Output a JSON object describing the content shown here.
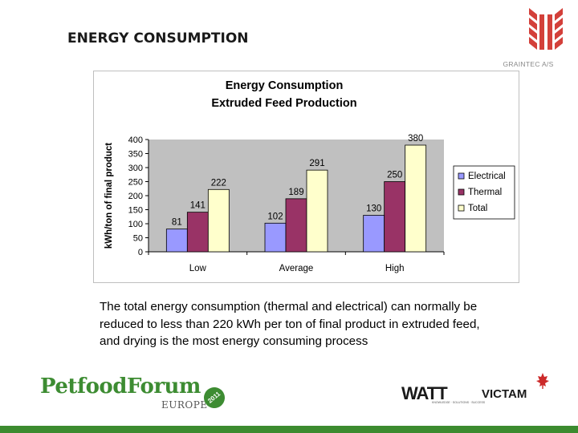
{
  "slide": {
    "title": "ENERGY CONSUMPTION",
    "body_text": "The total energy consumption (thermal and electrical) can normally be reduced to less than 220 kWh per ton of final product in extruded feed, and drying is the most energy consuming process"
  },
  "logos": {
    "graintec": "GRAINTEC A/S",
    "petfood_main": "PetfoodForum",
    "petfood_sub": "EUROPE",
    "petfood_badge": "2011",
    "watt": "WATT",
    "watt_tagline": "KNOWLEDGE · SOLUTIONS · SUCCESS",
    "victam": "VICTAM"
  },
  "colors": {
    "title_text": "#1a1a1a",
    "plot_background": "#c0c0c0",
    "electrical": "#9999ff",
    "thermal": "#993366",
    "total": "#ffffcc",
    "footer_green": "#3c8b2f",
    "graintec_red": "#d3403a"
  },
  "chart_data": {
    "type": "bar",
    "title": "Energy Consumption",
    "subtitle": "Extruded Feed Production",
    "xlabel": "",
    "ylabel": "kWh/ton of final product",
    "categories": [
      "Low",
      "Average",
      "High"
    ],
    "series": [
      {
        "name": "Electrical",
        "values": [
          81,
          102,
          130
        ],
        "color": "#9999ff"
      },
      {
        "name": "Thermal",
        "values": [
          141,
          189,
          250
        ],
        "color": "#993366"
      },
      {
        "name": "Total",
        "values": [
          222,
          291,
          380
        ],
        "color": "#ffffcc"
      }
    ],
    "ylim": [
      0,
      400
    ],
    "yticks": [
      0,
      50,
      100,
      150,
      200,
      250,
      300,
      350,
      400
    ],
    "grid": false,
    "legend": "right",
    "data_labels": true
  }
}
